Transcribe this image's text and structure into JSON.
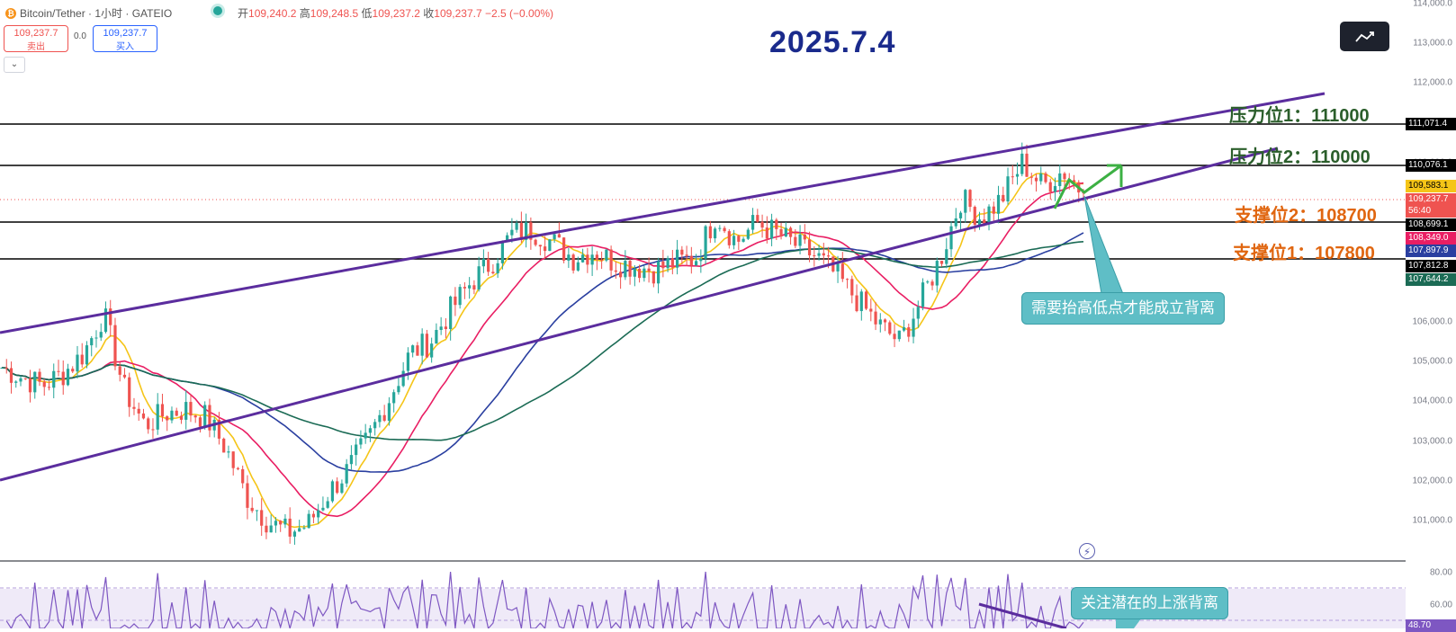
{
  "header": {
    "symbol": "Bitcoin/Tether · 1小时 · GATEIO",
    "ohlc_open_label": "开",
    "ohlc_open": "109,240.2",
    "ohlc_high_label": "高",
    "ohlc_high": "109,248.5",
    "ohlc_low_label": "低",
    "ohlc_low": "109,237.2",
    "ohlc_close_label": "收",
    "ohlc_close": "109,237.7",
    "ohlc_change": "−2.5 (−0.00%)",
    "sell_price": "109,237.7",
    "sell_label": "卖出",
    "spread": "0.0",
    "buy_price": "109,237.7",
    "buy_label": "买入"
  },
  "date_title": "2025.7.4",
  "levels": {
    "resistance1": "压力位1：111000",
    "resistance2": "压力位2：110000",
    "support2": "支撑位2：108700",
    "support1": "支撑位1：107800"
  },
  "callouts": {
    "main": "需要抬高低点才能成立背离",
    "rsi": "关注潜在的上涨背离"
  },
  "price_axis": {
    "ticks": [
      "114,000.0",
      "113,000.0",
      "112,000.0",
      "111,000.0",
      "110,000.0",
      "109,000.0",
      "108,000.0",
      "107,000.0",
      "106,000.0",
      "105,000.0",
      "104,000.0",
      "103,000.0",
      "102,000.0",
      "101,000.0"
    ],
    "tags": [
      {
        "text": "111,071.4",
        "color": "#000000"
      },
      {
        "text": "110,076.1",
        "color": "#000000"
      },
      {
        "text": "109,583.1",
        "color": "#f5c518"
      },
      {
        "text": "109,237.7",
        "color": "#ef5350"
      },
      {
        "text": "56:40",
        "color": "#ef5350"
      },
      {
        "text": "108,699.1",
        "color": "#000000"
      },
      {
        "text": "108,349.0",
        "color": "#e91e63"
      },
      {
        "text": "107,897.9",
        "color": "#2a3fa0"
      },
      {
        "text": "107,812.8",
        "color": "#000000"
      },
      {
        "text": "107,644.2",
        "color": "#1b6b55"
      }
    ]
  },
  "rsi_axis": {
    "ticks": [
      "80.00",
      "60.00"
    ],
    "value_tag": "48.70"
  },
  "chart_data": {
    "type": "candlestick",
    "instrument": "Bitcoin/Tether",
    "timeframe": "1小时",
    "exchange": "GATEIO",
    "last_price": 109237.7,
    "horizontal_levels": [
      111071.4,
      110076.1,
      108699.1,
      107812.8
    ],
    "moving_averages": [
      {
        "color": "#f5c518",
        "last": 109583.1
      },
      {
        "color": "#e91e63",
        "last": 108349.0
      },
      {
        "color": "#2a3fa0",
        "last": 107897.9
      },
      {
        "color": "#1b6b55",
        "last": 107644.2
      }
    ],
    "y_range": [
      100500,
      114200
    ],
    "close_path": [
      104850,
      104600,
      104400,
      104700,
      105200,
      106200,
      104300,
      103400,
      103700,
      103800,
      103600,
      102800,
      101600,
      101000,
      100700,
      100900,
      101700,
      102300,
      103100,
      104100,
      105200,
      105500,
      106300,
      107000,
      107500,
      108200,
      108300,
      108000,
      107600,
      107800,
      107500,
      107400,
      107300,
      107500,
      107600,
      108700,
      108000,
      108500,
      108200,
      107900,
      107600,
      107100,
      106500,
      105900,
      105500,
      106500,
      107600,
      109100,
      108600,
      109100,
      110000,
      109400,
      109800,
      109237.7
    ],
    "rsi": {
      "levels": [
        70,
        50
      ],
      "last": 48.7
    }
  }
}
